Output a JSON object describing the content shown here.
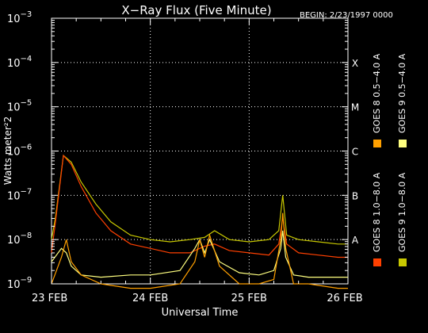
{
  "chart_data": {
    "type": "line",
    "title": "X−Ray Flux (Five Minute)",
    "begin_label": "BEGIN: 2/23/1997 0000",
    "xlabel": "Universal Time",
    "ylabel": "Watts meter²2",
    "y_scale": "log",
    "ylim": [
      1e-09,
      0.001
    ],
    "xlim_days": [
      0,
      3
    ],
    "x_ticks": [
      {
        "day": 0,
        "label": "23 FEB"
      },
      {
        "day": 1,
        "label": "24 FEB"
      },
      {
        "day": 2,
        "label": "25 FEB"
      },
      {
        "day": 3,
        "label": "26 FEB"
      }
    ],
    "y_ticks": [
      {
        "exp": -9,
        "label": "10",
        "sup": "−9"
      },
      {
        "exp": -8,
        "label": "10",
        "sup": "−8"
      },
      {
        "exp": -7,
        "label": "10",
        "sup": "−7"
      },
      {
        "exp": -6,
        "label": "10",
        "sup": "−6"
      },
      {
        "exp": -5,
        "label": "10",
        "sup": "−5"
      },
      {
        "exp": -4,
        "label": "10",
        "sup": "−4"
      },
      {
        "exp": -3,
        "label": "10",
        "sup": "−3"
      }
    ],
    "flare_classes": [
      {
        "label": "A",
        "exp": -8
      },
      {
        "label": "B",
        "exp": -7
      },
      {
        "label": "C",
        "exp": -6
      },
      {
        "label": "M",
        "exp": -5
      },
      {
        "label": "X",
        "exp": -4
      }
    ],
    "grid": true,
    "series": [
      {
        "name": "GOES 8 1.0−8.0 A",
        "color": "#ff4000",
        "points": [
          [
            0,
            -8.3
          ],
          [
            0.04,
            -7.6
          ],
          [
            0.12,
            -6.1
          ],
          [
            0.2,
            -6.3
          ],
          [
            0.3,
            -6.8
          ],
          [
            0.45,
            -7.4
          ],
          [
            0.6,
            -7.8
          ],
          [
            0.8,
            -8.1
          ],
          [
            1.0,
            -8.2
          ],
          [
            1.2,
            -8.3
          ],
          [
            1.4,
            -8.3
          ],
          [
            1.55,
            -8.15
          ],
          [
            1.65,
            -8.1
          ],
          [
            1.8,
            -8.25
          ],
          [
            2.0,
            -8.3
          ],
          [
            2.2,
            -8.35
          ],
          [
            2.3,
            -8.1
          ],
          [
            2.34,
            -7.5
          ],
          [
            2.38,
            -8.1
          ],
          [
            2.5,
            -8.3
          ],
          [
            2.7,
            -8.35
          ],
          [
            2.9,
            -8.4
          ],
          [
            3.0,
            -8.4
          ]
        ]
      },
      {
        "name": "GOES 8 0.5−4.0 A",
        "color": "#ffa000",
        "points": [
          [
            0,
            -9.0
          ],
          [
            0.1,
            -8.4
          ],
          [
            0.15,
            -8.0
          ],
          [
            0.2,
            -8.5
          ],
          [
            0.3,
            -8.8
          ],
          [
            0.5,
            -9.0
          ],
          [
            0.8,
            -9.1
          ],
          [
            1.0,
            -9.1
          ],
          [
            1.3,
            -9.0
          ],
          [
            1.45,
            -8.5
          ],
          [
            1.5,
            -8.0
          ],
          [
            1.55,
            -8.4
          ],
          [
            1.6,
            -7.9
          ],
          [
            1.7,
            -8.6
          ],
          [
            1.9,
            -9.0
          ],
          [
            2.1,
            -9.0
          ],
          [
            2.25,
            -8.9
          ],
          [
            2.32,
            -8.0
          ],
          [
            2.34,
            -7.4
          ],
          [
            2.37,
            -8.2
          ],
          [
            2.45,
            -9.0
          ],
          [
            2.6,
            -9.0
          ],
          [
            2.9,
            -9.1
          ],
          [
            3.0,
            -9.1
          ]
        ]
      },
      {
        "name": "GOES 9 1.0−8.0 A",
        "color": "#c8c800",
        "points": [
          [
            0,
            -8.0
          ],
          [
            0.04,
            -7.5
          ],
          [
            0.12,
            -6.1
          ],
          [
            0.2,
            -6.25
          ],
          [
            0.3,
            -6.7
          ],
          [
            0.45,
            -7.2
          ],
          [
            0.6,
            -7.6
          ],
          [
            0.8,
            -7.9
          ],
          [
            1.0,
            -8.0
          ],
          [
            1.2,
            -8.05
          ],
          [
            1.4,
            -8.0
          ],
          [
            1.55,
            -7.95
          ],
          [
            1.65,
            -7.8
          ],
          [
            1.8,
            -8.0
          ],
          [
            2.0,
            -8.05
          ],
          [
            2.2,
            -8.0
          ],
          [
            2.3,
            -7.8
          ],
          [
            2.34,
            -7.0
          ],
          [
            2.38,
            -7.9
          ],
          [
            2.5,
            -8.0
          ],
          [
            2.7,
            -8.05
          ],
          [
            2.9,
            -8.1
          ],
          [
            3.0,
            -8.1
          ]
        ]
      },
      {
        "name": "GOES 9 0.5−4.0 A",
        "color": "#ffff80",
        "points": [
          [
            0,
            -8.5
          ],
          [
            0.1,
            -8.2
          ],
          [
            0.15,
            -8.3
          ],
          [
            0.2,
            -8.6
          ],
          [
            0.3,
            -8.8
          ],
          [
            0.5,
            -8.85
          ],
          [
            0.8,
            -8.8
          ],
          [
            1.0,
            -8.8
          ],
          [
            1.3,
            -8.7
          ],
          [
            1.45,
            -8.2
          ],
          [
            1.5,
            -8.0
          ],
          [
            1.55,
            -8.3
          ],
          [
            1.6,
            -8.0
          ],
          [
            1.7,
            -8.5
          ],
          [
            1.9,
            -8.75
          ],
          [
            2.1,
            -8.8
          ],
          [
            2.25,
            -8.7
          ],
          [
            2.32,
            -8.2
          ],
          [
            2.34,
            -7.8
          ],
          [
            2.37,
            -8.4
          ],
          [
            2.45,
            -8.8
          ],
          [
            2.6,
            -8.85
          ],
          [
            2.9,
            -8.85
          ],
          [
            3.0,
            -8.85
          ]
        ]
      }
    ]
  }
}
